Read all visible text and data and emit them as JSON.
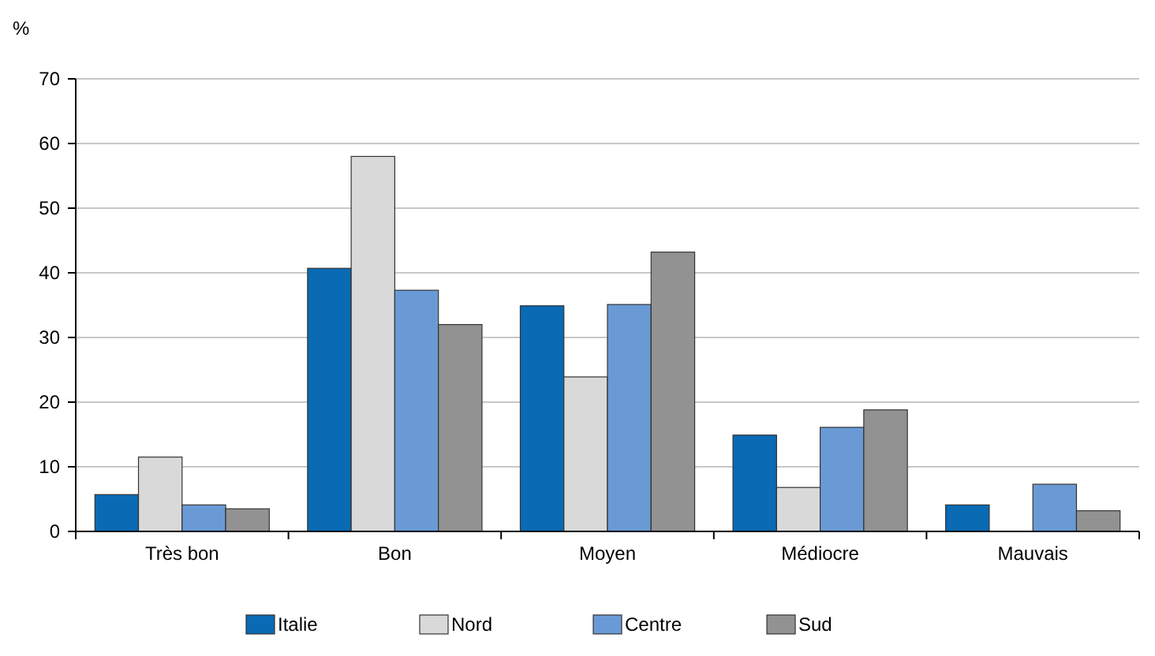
{
  "chart_data": {
    "type": "bar",
    "ylabel": "%",
    "categories": [
      "Très bon",
      "Bon",
      "Moyen",
      "Médiocre",
      "Mauvais"
    ],
    "series": [
      {
        "name": "Italie",
        "color": "#0a6ab4",
        "values": [
          5.7,
          40.7,
          34.9,
          14.9,
          4.1
        ]
      },
      {
        "name": "Nord",
        "color": "#d9d9d9",
        "values": [
          11.5,
          58,
          23.9,
          6.8,
          0
        ]
      },
      {
        "name": "Centre",
        "color": "#6a9ad6",
        "values": [
          4.1,
          37.3,
          35.1,
          16.1,
          7.3
        ]
      },
      {
        "name": "Sud",
        "color": "#929292",
        "values": [
          3.5,
          32,
          43.2,
          18.8,
          3.2
        ]
      }
    ],
    "ylim": [
      0,
      70
    ],
    "yticks": [
      0,
      10,
      20,
      30,
      40,
      50,
      60,
      70
    ],
    "grid": "y",
    "legend": "bottom"
  }
}
